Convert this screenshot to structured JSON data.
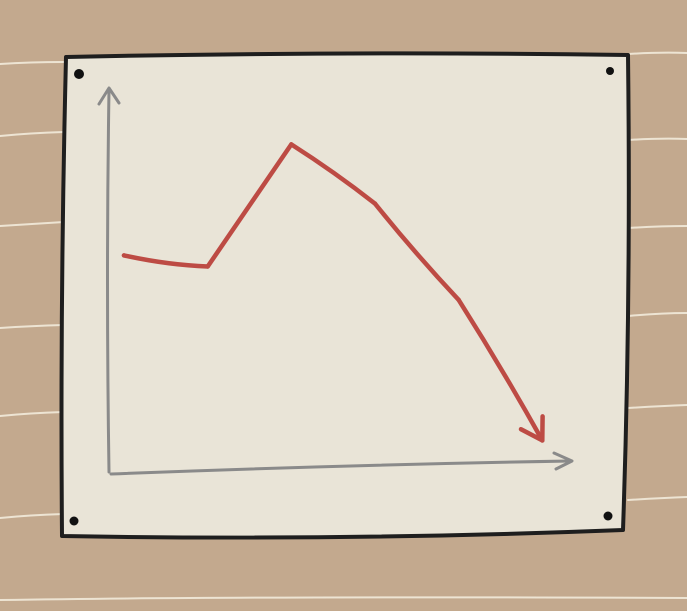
{
  "colors": {
    "wall": "#c3a98e",
    "plank_line": "#ede4d3",
    "paper": "#e9e4d7",
    "border": "#1e1e1e",
    "pin": "#111111",
    "axis": "#8a8a8a",
    "line": "#bd4b44"
  },
  "chart_data": {
    "type": "line",
    "title": "",
    "xlabel": "",
    "ylabel": "",
    "x": [
      0,
      1,
      2,
      3,
      4,
      5
    ],
    "series": [
      {
        "values": [
          58,
          55,
          88,
          72,
          46,
          8
        ],
        "ending": "arrow"
      }
    ],
    "xlim": [
      0,
      5.2
    ],
    "ylim": [
      0,
      100
    ],
    "grid": false,
    "legend": "none"
  }
}
